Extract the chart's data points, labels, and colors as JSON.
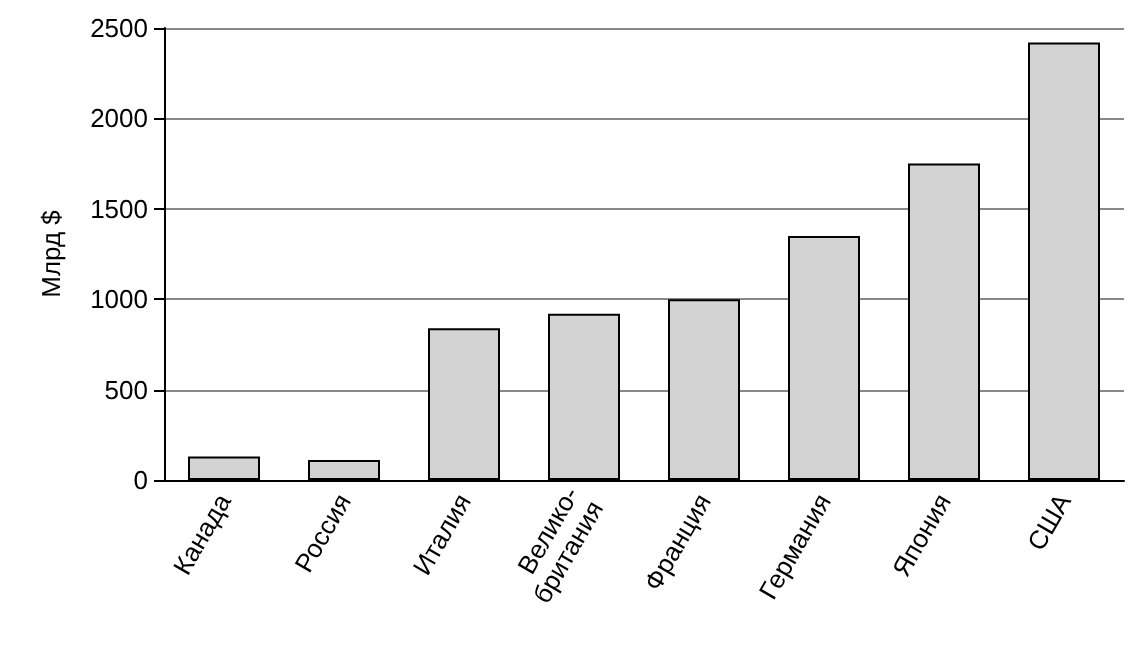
{
  "chart_data": {
    "type": "bar",
    "ylabel": "Млрд $",
    "categories": [
      "Канада",
      "Россия",
      "Италия",
      "Велико-\nбритания",
      "Франция",
      "Германия",
      "Япония",
      "США"
    ],
    "values": [
      130,
      110,
      840,
      920,
      1000,
      1350,
      1750,
      2420
    ],
    "color": "#d3d3d3",
    "ylim": [
      0,
      2500
    ],
    "yticks": [
      0,
      500,
      1000,
      1500,
      2000,
      2500
    ],
    "grid": "y"
  }
}
